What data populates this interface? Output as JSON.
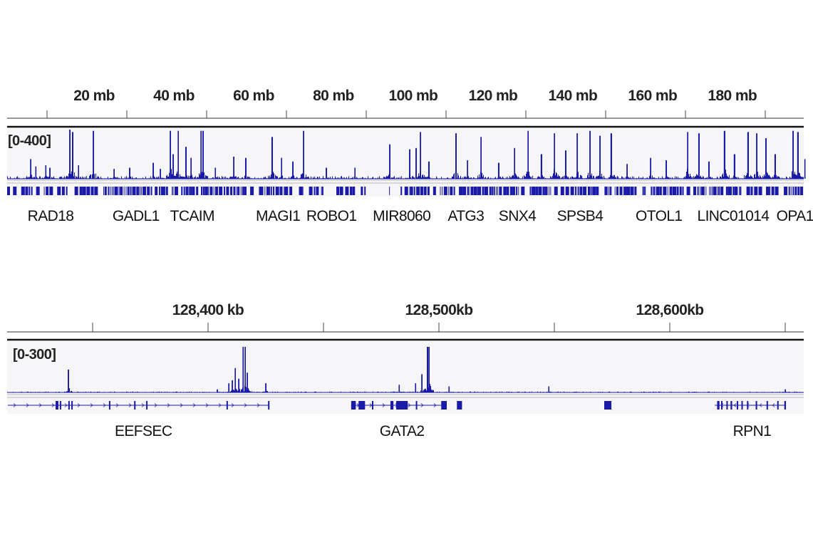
{
  "chart_data": [
    {
      "type": "genome-track",
      "units": "mb",
      "xlim": [
        -1.8,
        197.9
      ],
      "tick_labels": [
        {
          "value": 20,
          "label": "20 mb"
        },
        {
          "value": 40,
          "label": "40 mb"
        },
        {
          "value": 60,
          "label": "60 mb"
        },
        {
          "value": 80,
          "label": "80 mb"
        },
        {
          "value": 100,
          "label": "100 mb"
        },
        {
          "value": 120,
          "label": "120 mb"
        },
        {
          "value": 140,
          "label": "140 mb"
        },
        {
          "value": 160,
          "label": "160 mb"
        },
        {
          "value": 180,
          "label": "180 mb"
        }
      ],
      "data_range_label": "[0-400]",
      "ylim": [
        0,
        400
      ],
      "color": "#1a1aa8",
      "peaks": [
        [
          4.1,
          160
        ],
        [
          5.4,
          100
        ],
        [
          7.9,
          110
        ],
        [
          8.9,
          90
        ],
        [
          13.9,
          400
        ],
        [
          14.6,
          380
        ],
        [
          16.1,
          110
        ],
        [
          19.8,
          390
        ],
        [
          25,
          80
        ],
        [
          28.9,
          90
        ],
        [
          34.8,
          130
        ],
        [
          36.6,
          80
        ],
        [
          39.1,
          390
        ],
        [
          39.8,
          200
        ],
        [
          41.1,
          390
        ],
        [
          43,
          260
        ],
        [
          44.3,
          170
        ],
        [
          46.8,
          390
        ],
        [
          47.3,
          390
        ],
        [
          50.4,
          90
        ],
        [
          55,
          180
        ],
        [
          58,
          170
        ],
        [
          64.6,
          340
        ],
        [
          67,
          170
        ],
        [
          69.8,
          140
        ],
        [
          72.5,
          390
        ],
        [
          78.2,
          90
        ],
        [
          85.4,
          90
        ],
        [
          94.1,
          280
        ],
        [
          99.1,
          240
        ],
        [
          100.7,
          250
        ],
        [
          101.8,
          380
        ],
        [
          103.9,
          140
        ],
        [
          110.7,
          370
        ],
        [
          113.6,
          150
        ],
        [
          117,
          340
        ],
        [
          121.4,
          130
        ],
        [
          125.4,
          250
        ],
        [
          128.8,
          390
        ],
        [
          132.1,
          200
        ],
        [
          135.4,
          370
        ],
        [
          138.2,
          230
        ],
        [
          141.1,
          370
        ],
        [
          144.3,
          390
        ],
        [
          146.8,
          350
        ],
        [
          149.6,
          370
        ],
        [
          153.6,
          120
        ],
        [
          159.5,
          170
        ],
        [
          163.4,
          150
        ],
        [
          168.8,
          380
        ],
        [
          171.6,
          370
        ],
        [
          174.1,
          140
        ],
        [
          178,
          390
        ],
        [
          180.5,
          200
        ],
        [
          183.9,
          380
        ],
        [
          186.1,
          370
        ],
        [
          188.4,
          330
        ],
        [
          190.7,
          200
        ],
        [
          195.2,
          390
        ],
        [
          196.4,
          380
        ],
        [
          198.2,
          160
        ]
      ],
      "genes": [
        {
          "name": "RAD18",
          "label_pos": 9.1
        },
        {
          "name": "GADL1",
          "label_pos": 30.5
        },
        {
          "name": "TCAIM",
          "label_pos": 44.6
        },
        {
          "name": "MAGI1",
          "label_pos": 66.1
        },
        {
          "name": "ROBO1",
          "label_pos": 79.5
        },
        {
          "name": "MIR8060",
          "label_pos": 97.1
        },
        {
          "name": "ATG3",
          "label_pos": 113.2
        },
        {
          "name": "SNX4",
          "label_pos": 126.1
        },
        {
          "name": "SPSB4",
          "label_pos": 141.8
        },
        {
          "name": "OTOL1",
          "label_pos": 161.6
        },
        {
          "name": "LINC01014",
          "label_pos": 180.2
        },
        {
          "name": "OPA1",
          "label_pos": 195.7
        }
      ]
    },
    {
      "type": "genome-track",
      "units": "kb",
      "xlim": [
        128313,
        128658
      ],
      "tick_labels": [
        {
          "value": 128400,
          "label": "128,400 kb"
        },
        {
          "value": 128500,
          "label": "128,500kb"
        },
        {
          "value": 128600,
          "label": "128,600kb"
        }
      ],
      "data_range_label": "[0-300]",
      "ylim": [
        0,
        300
      ],
      "color": "#1a1aa8",
      "peaks": [
        [
          128339.5,
          150
        ],
        [
          128404,
          20
        ],
        [
          128409,
          60
        ],
        [
          128410.5,
          80
        ],
        [
          128411.8,
          160
        ],
        [
          128413.3,
          90
        ],
        [
          128415.2,
          300
        ],
        [
          128416.1,
          300
        ],
        [
          128417,
          130
        ],
        [
          128425,
          60
        ],
        [
          128482.8,
          50
        ],
        [
          128489.9,
          60
        ],
        [
          128492.6,
          120
        ],
        [
          128495,
          300
        ],
        [
          128495.7,
          300
        ],
        [
          128504.4,
          40
        ],
        [
          128547.6,
          40
        ],
        [
          128650,
          20
        ]
      ],
      "genes": [
        {
          "name": "EEFSEC",
          "strand": "+",
          "start": 128313.3,
          "end": 128426.3,
          "exons": [
            [
              128334,
              128335.2
            ],
            [
              128335.8,
              128336.4
            ],
            [
              128339.5,
              128340.1
            ],
            [
              128340.8,
              128341.2
            ],
            [
              128357.1,
              128357.6
            ],
            [
              128368,
              128368.5
            ],
            [
              128373.2,
              128373.7
            ],
            [
              128408,
              128408.5
            ],
            [
              128426,
              128426.5
            ]
          ],
          "label_pos": 128372
        },
        {
          "name": "GATA2",
          "strand": "+",
          "start": 128462,
          "end": 128503.4,
          "exons": [
            [
              128462,
              128464
            ],
            [
              128465.2,
              128468
            ],
            [
              128471,
              128471.6
            ],
            [
              128479,
              128480.3
            ],
            [
              128481.5,
              128486.5
            ],
            [
              128490,
              128490.6
            ],
            [
              128501,
              128503.4
            ],
            [
              128507.8,
              128510
            ]
          ],
          "label_pos": 128484
        },
        {
          "name": "",
          "strand": "+",
          "start": 128571.6,
          "end": 128574.7,
          "exons": [
            [
              128571.6,
              128574.7
            ]
          ]
        },
        {
          "name": "RPN1",
          "strand": "-",
          "start": 128619.5,
          "end": 128650.3,
          "exons": [
            [
              128620.5,
              128621.5
            ],
            [
              128622.2,
              128622.8
            ],
            [
              128624.5,
              128625
            ],
            [
              128626.3,
              128627
            ],
            [
              128629,
              128629.5
            ],
            [
              128631,
              128631.5
            ],
            [
              128633.4,
              128634
            ],
            [
              128637.2,
              128637.7
            ],
            [
              128641.9,
              128642.4
            ],
            [
              128646.5,
              128647
            ],
            [
              128649.6,
              128650.3
            ]
          ],
          "label_pos": 128635.6
        }
      ]
    }
  ]
}
